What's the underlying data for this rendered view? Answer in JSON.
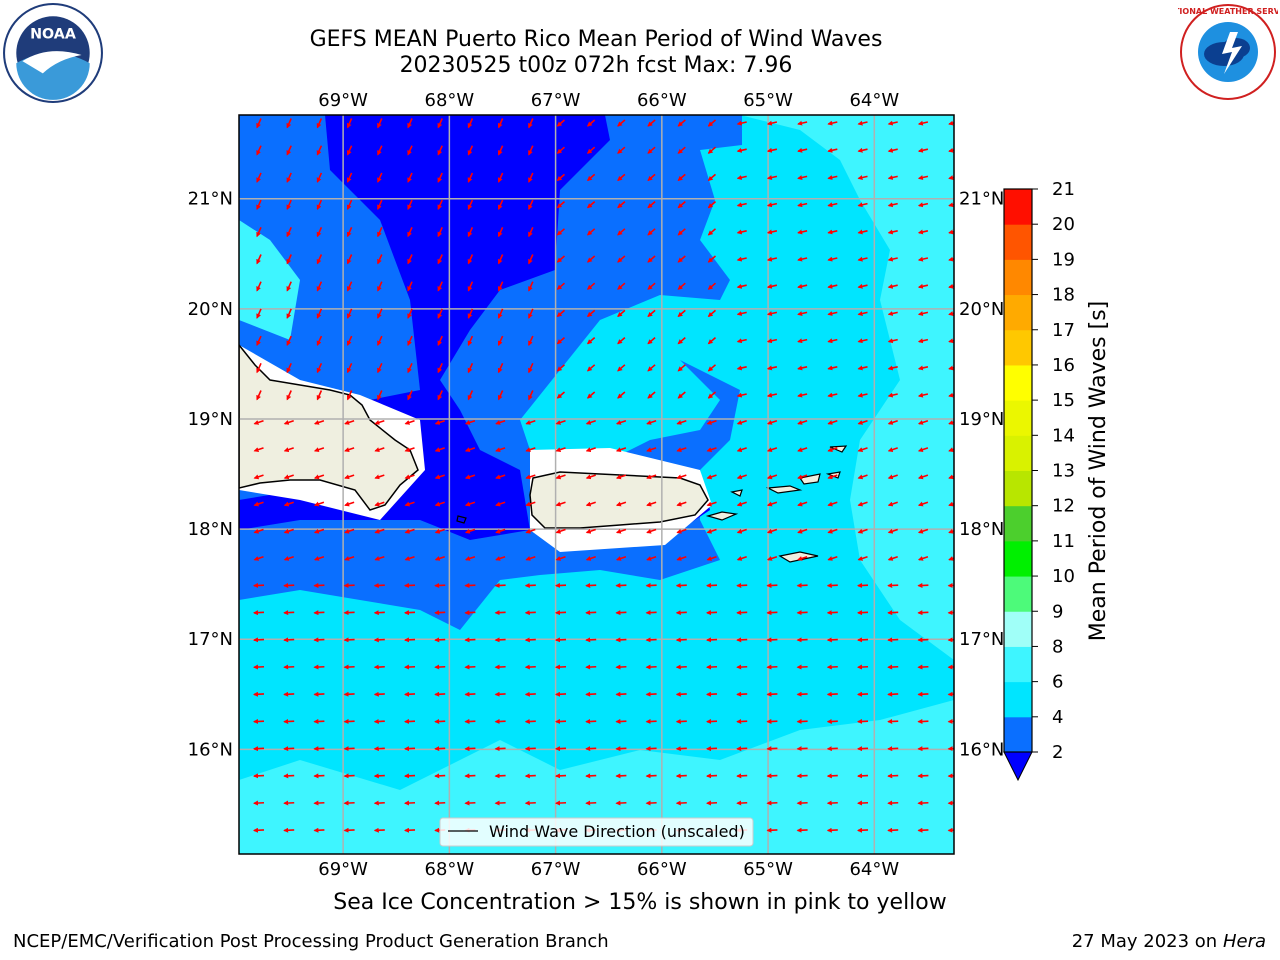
{
  "title_line1": "GEFS MEAN Puerto Rico Mean Period of Wind Waves",
  "title_line2": "20230525 t00z 072h fcst   Max: 7.96",
  "map": {
    "lon_labels": [
      "69°W",
      "68°W",
      "67°W",
      "66°W",
      "65°W",
      "64°W"
    ],
    "lat_labels": [
      "21°N",
      "20°N",
      "19°N",
      "18°N",
      "17°N",
      "16°N"
    ],
    "legend_label": "Wind Wave Direction (unscaled)",
    "arrow_color": "#ff0000"
  },
  "colorbar": {
    "label": "Mean Period of Wind Waves [s]",
    "ticks": [
      "2",
      "4",
      "6",
      "8",
      "9",
      "10",
      "11",
      "12",
      "13",
      "14",
      "15",
      "16",
      "17",
      "18",
      "19",
      "20",
      "21"
    ],
    "colors": [
      "#0a6fff",
      "#00e5ff",
      "#3ef5ff",
      "#a0fff8",
      "#4dfa7a",
      "#00f000",
      "#4ccf2d",
      "#b8e600",
      "#d9f200",
      "#ebf700",
      "#ffff00",
      "#ffc800",
      "#ffaa00",
      "#ff8800",
      "#ff5500",
      "#ff0f00"
    ],
    "under_color": "#0000ff"
  },
  "ice_note": "Sea Ice Concentration > 15% is shown in pink to yellow",
  "footer_left": "NCEP/EMC/Verification Post Processing Product Generation Branch",
  "footer_date": "27 May 2023 on",
  "footer_machine": "Hera",
  "logos": {
    "noaa": "NOAA",
    "nws": "NATIONAL WEATHER SERVICE"
  }
}
